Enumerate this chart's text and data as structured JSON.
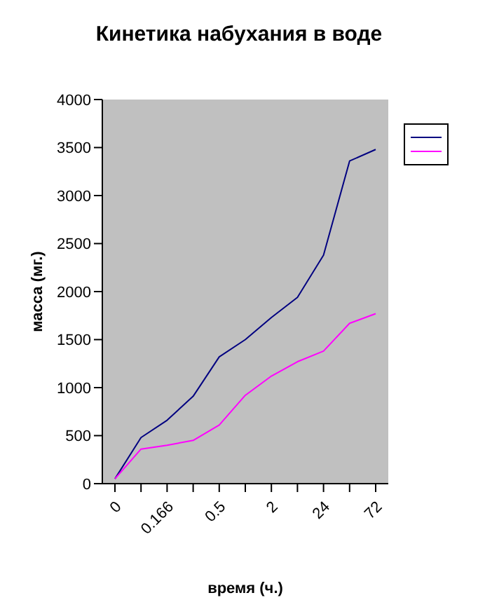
{
  "chart_data": {
    "type": "line",
    "title": "Кинетика набухания в воде",
    "xlabel": "время (ч.)",
    "ylabel": "масса (мг.)",
    "categories": [
      "0",
      null,
      "0.166",
      null,
      "0.5",
      null,
      "2",
      null,
      "24",
      null,
      "72"
    ],
    "series": [
      {
        "color": "#000080",
        "values": [
          50,
          480,
          660,
          910,
          1320,
          1500,
          1730,
          1940,
          2380,
          3360,
          3480
        ]
      },
      {
        "color": "#ff00ff",
        "values": [
          50,
          360,
          400,
          450,
          610,
          920,
          1120,
          1270,
          1380,
          1670,
          1770
        ]
      }
    ],
    "ylim": [
      0,
      4000
    ],
    "yticks": [
      0,
      500,
      1000,
      1500,
      2000,
      2500,
      3000,
      3500,
      4000
    ],
    "grid": false,
    "marker": "none",
    "line_style": "solid"
  }
}
